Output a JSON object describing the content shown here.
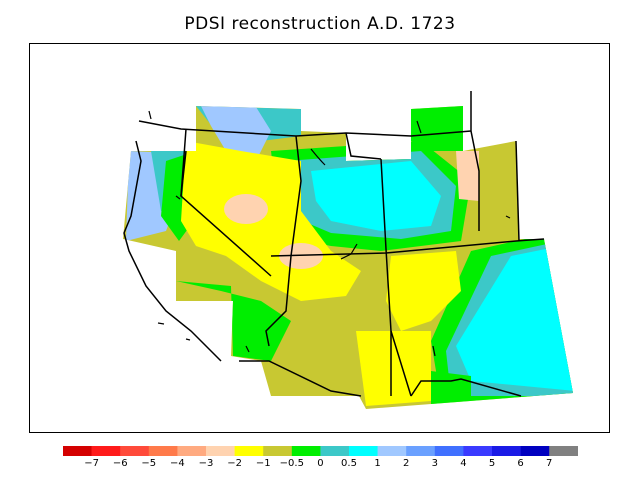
{
  "title": "PDSI reconstruction A.D. 1723",
  "legend": {
    "colors": [
      "#d40000",
      "#ff1a1a",
      "#ff4a3a",
      "#ff7a4a",
      "#ffaa80",
      "#ffd3b0",
      "#ffff00",
      "#c8c832",
      "#00ee00",
      "#3cc8c8",
      "#00ffff",
      "#a0c8ff",
      "#6aa0ff",
      "#4070ff",
      "#3a3aff",
      "#1a1ae6",
      "#0000c0",
      "#808080"
    ],
    "labels": [
      "−7",
      "−6",
      "−5",
      "−4",
      "−3",
      "−2",
      "−1",
      "−0.5",
      "0",
      "0.5",
      "1",
      "2",
      "3",
      "4",
      "5",
      "6",
      "7"
    ]
  }
}
